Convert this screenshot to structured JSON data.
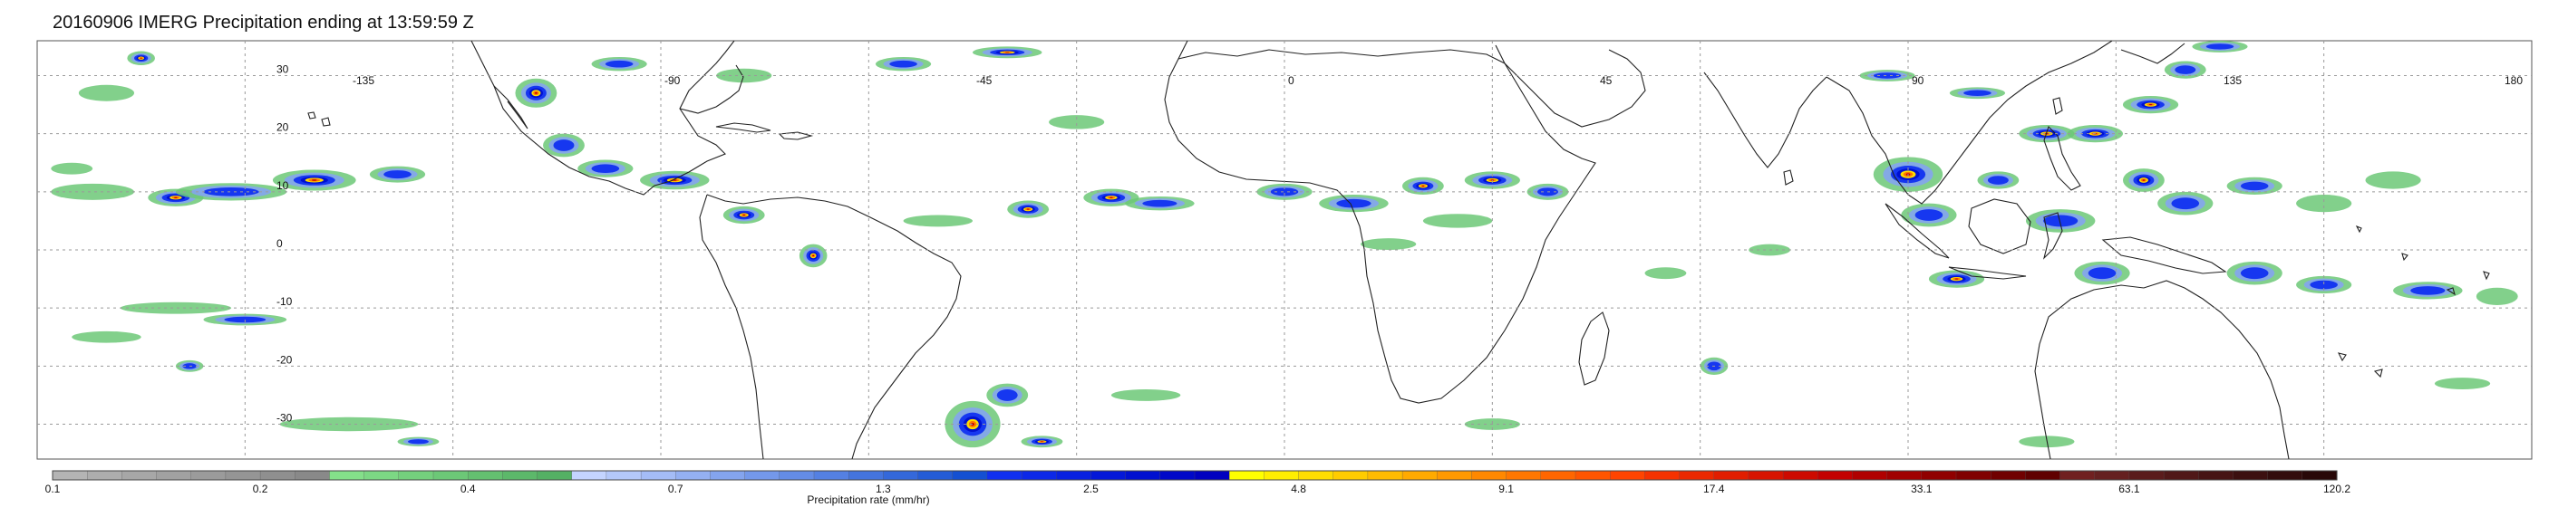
{
  "title": "20160906 IMERG Precipitation ending at 13:59:59 Z",
  "map": {
    "lon_range": [
      -180,
      180
    ],
    "lat_range": [
      -36,
      36
    ],
    "lon_gridlines": [
      -150,
      -120,
      -90,
      -60,
      -30,
      0,
      30,
      60,
      90,
      120,
      150
    ],
    "lat_gridlines": [
      -30,
      -20,
      -10,
      0,
      10,
      20,
      30
    ],
    "lon_labels": [
      {
        "lon": -135,
        "text": "-135"
      },
      {
        "lon": -90,
        "text": "-90"
      },
      {
        "lon": -45,
        "text": "-45"
      },
      {
        "lon": 0,
        "text": "0"
      },
      {
        "lon": 45,
        "text": "45"
      },
      {
        "lon": 90,
        "text": "90"
      },
      {
        "lon": 135,
        "text": "135"
      },
      {
        "lon": 180,
        "text": "180"
      }
    ],
    "lat_labels": [
      {
        "lat": 30,
        "text": "30"
      },
      {
        "lat": 20,
        "text": "20"
      },
      {
        "lat": 10,
        "text": "10"
      },
      {
        "lat": 0,
        "text": "0"
      },
      {
        "lat": -10,
        "text": "-10"
      },
      {
        "lat": -20,
        "text": "-20"
      },
      {
        "lat": -30,
        "text": "-30"
      }
    ],
    "grid": true
  },
  "colorbar": {
    "title": "Precipitation rate (mm/hr)",
    "labels": [
      "0.1",
      "0.2",
      "0.4",
      "0.7",
      "1.3",
      "2.5",
      "4.8",
      "9.1",
      "17.4",
      "33.1",
      "63.1",
      "120.2"
    ],
    "colors": [
      "#b4b4b4",
      "#adadad",
      "#a7a7a7",
      "#a1a1a1",
      "#9b9b9b",
      "#959595",
      "#8f8f8f",
      "#898989",
      "#84e08a",
      "#7cd884",
      "#74d07d",
      "#6cc877",
      "#64c070",
      "#5cb86a",
      "#54b064",
      "#c4d4ff",
      "#b4c8fa",
      "#a4bcf6",
      "#94b0f2",
      "#84a4ee",
      "#7498ea",
      "#648ce6",
      "#5480e2",
      "#4474de",
      "#3468da",
      "#245cd6",
      "#1450d2",
      "#1030f0",
      "#0c28e8",
      "#0820e0",
      "#0418d8",
      "#0010d0",
      "#0008c8",
      "#0000c0",
      "#ffff00",
      "#ffee00",
      "#ffdd00",
      "#ffcc00",
      "#ffbb00",
      "#ffaa00",
      "#ff9900",
      "#ff8800",
      "#ff7700",
      "#ff6600",
      "#ff5500",
      "#ff4400",
      "#f53200",
      "#eb2800",
      "#e11e00",
      "#d71400",
      "#cd0a00",
      "#c30000",
      "#b00000",
      "#a00000",
      "#900000",
      "#800000",
      "#700000",
      "#600000",
      "#702020",
      "#652020",
      "#5a1c1c",
      "#501818",
      "#461414",
      "#3c1010",
      "#320c0c",
      "#280808"
    ]
  },
  "precip_palette": {
    "light": "#6cc877",
    "light_blue": "#84a4ee",
    "blue": "#1030f0",
    "deep_blue": "#0010d0",
    "yellow": "#ffdd00",
    "orange": "#ff7700",
    "red": "#c30000"
  },
  "precip_cells": [
    {
      "lon": -160,
      "lat": 9,
      "rx": 4,
      "ry": 1.5,
      "level": "heavy"
    },
    {
      "lon": -140,
      "lat": 12,
      "rx": 6,
      "ry": 1.8,
      "level": "heavy"
    },
    {
      "lon": -152,
      "lat": 10,
      "rx": 8,
      "ry": 1.5,
      "level": "moderate"
    },
    {
      "lon": -128,
      "lat": 13,
      "rx": 4,
      "ry": 1.4,
      "level": "moderate"
    },
    {
      "lon": -172,
      "lat": 10,
      "rx": 6,
      "ry": 1.4,
      "level": "light"
    },
    {
      "lon": -175,
      "lat": 14,
      "rx": 3,
      "ry": 1.0,
      "level": "light"
    },
    {
      "lon": -170,
      "lat": 27,
      "rx": 4,
      "ry": 1.4,
      "level": "light"
    },
    {
      "lon": -165,
      "lat": 33,
      "rx": 2,
      "ry": 1.2,
      "level": "heavy"
    },
    {
      "lon": -108,
      "lat": 27,
      "rx": 3,
      "ry": 2.5,
      "level": "heavy"
    },
    {
      "lon": -104,
      "lat": 18,
      "rx": 3,
      "ry": 2.0,
      "level": "moderate"
    },
    {
      "lon": -98,
      "lat": 14,
      "rx": 4,
      "ry": 1.5,
      "level": "moderate"
    },
    {
      "lon": -88,
      "lat": 12,
      "rx": 5,
      "ry": 1.6,
      "level": "heavy"
    },
    {
      "lon": -78,
      "lat": 6,
      "rx": 3,
      "ry": 1.5,
      "level": "heavy"
    },
    {
      "lon": -68,
      "lat": -1,
      "rx": 2,
      "ry": 2.0,
      "level": "heavy"
    },
    {
      "lon": -96,
      "lat": 32,
      "rx": 4,
      "ry": 1.2,
      "level": "moderate"
    },
    {
      "lon": -78,
      "lat": 30,
      "rx": 4,
      "ry": 1.2,
      "level": "light"
    },
    {
      "lon": -55,
      "lat": 32,
      "rx": 4,
      "ry": 1.2,
      "level": "moderate"
    },
    {
      "lon": -40,
      "lat": 34,
      "rx": 5,
      "ry": 1.0,
      "level": "heavy"
    },
    {
      "lon": -37,
      "lat": 7,
      "rx": 3,
      "ry": 1.5,
      "level": "heavy"
    },
    {
      "lon": -25,
      "lat": 9,
      "rx": 4,
      "ry": 1.5,
      "level": "heavy"
    },
    {
      "lon": -18,
      "lat": 8,
      "rx": 5,
      "ry": 1.2,
      "level": "moderate"
    },
    {
      "lon": -50,
      "lat": 5,
      "rx": 5,
      "ry": 1.0,
      "level": "light"
    },
    {
      "lon": -30,
      "lat": 22,
      "rx": 4,
      "ry": 1.2,
      "level": "light"
    },
    {
      "lon": 0,
      "lat": 10,
      "rx": 4,
      "ry": 1.4,
      "level": "moderate"
    },
    {
      "lon": 10,
      "lat": 8,
      "rx": 5,
      "ry": 1.5,
      "level": "moderate"
    },
    {
      "lon": 20,
      "lat": 11,
      "rx": 3,
      "ry": 1.5,
      "level": "heavy"
    },
    {
      "lon": 30,
      "lat": 12,
      "rx": 4,
      "ry": 1.5,
      "level": "heavy"
    },
    {
      "lon": 38,
      "lat": 10,
      "rx": 3,
      "ry": 1.4,
      "level": "moderate"
    },
    {
      "lon": 25,
      "lat": 5,
      "rx": 5,
      "ry": 1.2,
      "level": "light"
    },
    {
      "lon": 15,
      "lat": 1,
      "rx": 4,
      "ry": 1.0,
      "level": "light"
    },
    {
      "lon": 55,
      "lat": -4,
      "rx": 3,
      "ry": 1.0,
      "level": "light"
    },
    {
      "lon": 70,
      "lat": 0,
      "rx": 3,
      "ry": 1.0,
      "level": "light"
    },
    {
      "lon": 90,
      "lat": 13,
      "rx": 5,
      "ry": 3.0,
      "level": "heavy"
    },
    {
      "lon": 93,
      "lat": 6,
      "rx": 4,
      "ry": 2.0,
      "level": "moderate"
    },
    {
      "lon": 97,
      "lat": -5,
      "rx": 4,
      "ry": 1.5,
      "level": "heavy"
    },
    {
      "lon": 103,
      "lat": 12,
      "rx": 3,
      "ry": 1.5,
      "level": "moderate"
    },
    {
      "lon": 110,
      "lat": 20,
      "rx": 4,
      "ry": 1.5,
      "level": "heavy"
    },
    {
      "lon": 117,
      "lat": 20,
      "rx": 4,
      "ry": 1.5,
      "level": "heavy"
    },
    {
      "lon": 125,
      "lat": 25,
      "rx": 4,
      "ry": 1.5,
      "level": "heavy"
    },
    {
      "lon": 130,
      "lat": 31,
      "rx": 3,
      "ry": 1.5,
      "level": "moderate"
    },
    {
      "lon": 135,
      "lat": 35,
      "rx": 4,
      "ry": 1.0,
      "level": "moderate"
    },
    {
      "lon": 124,
      "lat": 12,
      "rx": 3,
      "ry": 2.0,
      "level": "heavy"
    },
    {
      "lon": 100,
      "lat": 27,
      "rx": 4,
      "ry": 1.0,
      "level": "moderate"
    },
    {
      "lon": 87,
      "lat": 30,
      "rx": 4,
      "ry": 1.0,
      "level": "moderate"
    },
    {
      "lon": 112,
      "lat": 5,
      "rx": 5,
      "ry": 2.0,
      "level": "moderate"
    },
    {
      "lon": 118,
      "lat": -4,
      "rx": 4,
      "ry": 2.0,
      "level": "moderate"
    },
    {
      "lon": 130,
      "lat": 8,
      "rx": 4,
      "ry": 2.0,
      "level": "moderate"
    },
    {
      "lon": 140,
      "lat": 11,
      "rx": 4,
      "ry": 1.5,
      "level": "moderate"
    },
    {
      "lon": 150,
      "lat": 8,
      "rx": 4,
      "ry": 1.5,
      "level": "light"
    },
    {
      "lon": 160,
      "lat": 12,
      "rx": 4,
      "ry": 1.5,
      "level": "light"
    },
    {
      "lon": 140,
      "lat": -4,
      "rx": 4,
      "ry": 2.0,
      "level": "moderate"
    },
    {
      "lon": 150,
      "lat": -6,
      "rx": 4,
      "ry": 1.5,
      "level": "moderate"
    },
    {
      "lon": 165,
      "lat": -7,
      "rx": 5,
      "ry": 1.5,
      "level": "moderate"
    },
    {
      "lon": 175,
      "lat": -8,
      "rx": 3,
      "ry": 1.5,
      "level": "light"
    },
    {
      "lon": -160,
      "lat": -10,
      "rx": 8,
      "ry": 1.0,
      "level": "light"
    },
    {
      "lon": -150,
      "lat": -12,
      "rx": 6,
      "ry": 1.0,
      "level": "moderate"
    },
    {
      "lon": -170,
      "lat": -15,
      "rx": 5,
      "ry": 1.0,
      "level": "light"
    },
    {
      "lon": -158,
      "lat": -20,
      "rx": 2,
      "ry": 1.0,
      "level": "moderate"
    },
    {
      "lon": -135,
      "lat": -30,
      "rx": 10,
      "ry": 1.2,
      "level": "light"
    },
    {
      "lon": -125,
      "lat": -33,
      "rx": 3,
      "ry": 0.8,
      "level": "moderate"
    },
    {
      "lon": -45,
      "lat": -30,
      "rx": 4,
      "ry": 4.0,
      "level": "heavy"
    },
    {
      "lon": -40,
      "lat": -25,
      "rx": 3,
      "ry": 2.0,
      "level": "moderate"
    },
    {
      "lon": -35,
      "lat": -33,
      "rx": 3,
      "ry": 1.0,
      "level": "heavy"
    },
    {
      "lon": -20,
      "lat": -25,
      "rx": 5,
      "ry": 1.0,
      "level": "light"
    },
    {
      "lon": 30,
      "lat": -30,
      "rx": 4,
      "ry": 1.0,
      "level": "light"
    },
    {
      "lon": 62,
      "lat": -20,
      "rx": 2,
      "ry": 1.5,
      "level": "moderate"
    },
    {
      "lon": 110,
      "lat": -33,
      "rx": 4,
      "ry": 1.0,
      "level": "light"
    },
    {
      "lon": 170,
      "lat": -23,
      "rx": 4,
      "ry": 1.0,
      "level": "light"
    }
  ]
}
